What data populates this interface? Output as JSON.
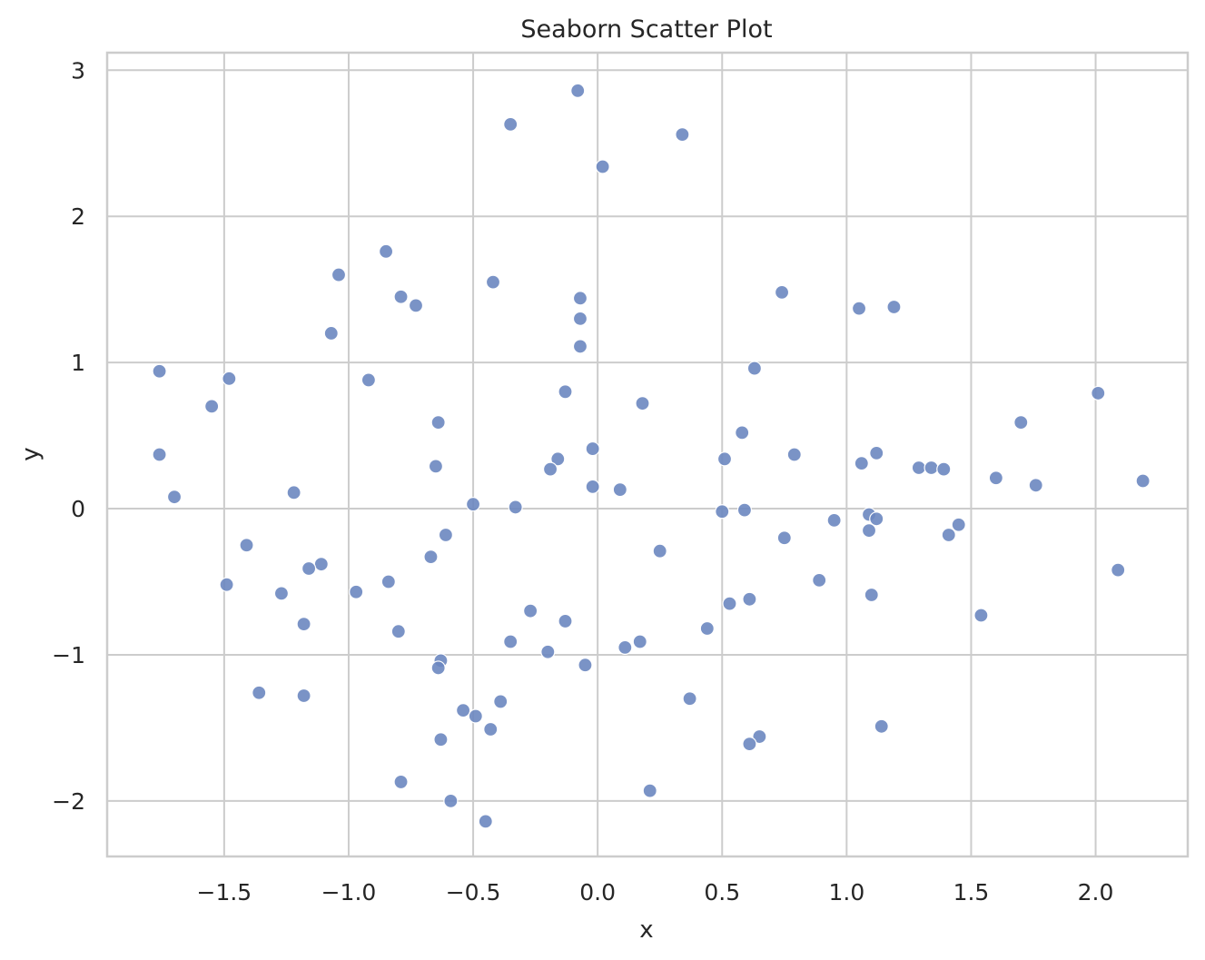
{
  "chart_data": {
    "type": "scatter",
    "title": "Seaborn Scatter Plot",
    "xlabel": "x",
    "ylabel": "y",
    "xlim": [
      -1.97,
      2.37
    ],
    "ylim": [
      -2.38,
      3.12
    ],
    "xticks": [
      -1.5,
      -1.0,
      -0.5,
      0.0,
      0.5,
      1.0,
      1.5,
      2.0
    ],
    "xtick_labels": [
      "−1.5",
      "−1.0",
      "−0.5",
      "0.0",
      "0.5",
      "1.0",
      "1.5",
      "2.0"
    ],
    "yticks": [
      -2,
      -1,
      0,
      1,
      2,
      3
    ],
    "ytick_labels": [
      "−2",
      "−1",
      "0",
      "1",
      "2",
      "3"
    ],
    "grid": true,
    "marker_color": "#6C87C0",
    "points": [
      {
        "x": -0.08,
        "y": 2.86
      },
      {
        "x": -0.35,
        "y": 2.63
      },
      {
        "x": 0.34,
        "y": 2.56
      },
      {
        "x": 0.02,
        "y": 2.34
      },
      {
        "x": -0.85,
        "y": 1.76
      },
      {
        "x": -1.04,
        "y": 1.6
      },
      {
        "x": -0.42,
        "y": 1.55
      },
      {
        "x": 0.74,
        "y": 1.48
      },
      {
        "x": -0.79,
        "y": 1.45
      },
      {
        "x": -0.07,
        "y": 1.44
      },
      {
        "x": -0.73,
        "y": 1.39
      },
      {
        "x": 1.19,
        "y": 1.38
      },
      {
        "x": 1.05,
        "y": 1.37
      },
      {
        "x": -0.07,
        "y": 1.3
      },
      {
        "x": -1.07,
        "y": 1.2
      },
      {
        "x": -0.07,
        "y": 1.11
      },
      {
        "x": 0.63,
        "y": 0.96
      },
      {
        "x": -1.76,
        "y": 0.94
      },
      {
        "x": -1.48,
        "y": 0.89
      },
      {
        "x": -0.92,
        "y": 0.88
      },
      {
        "x": 2.01,
        "y": 0.79
      },
      {
        "x": -0.13,
        "y": 0.8
      },
      {
        "x": 0.18,
        "y": 0.72
      },
      {
        "x": -1.55,
        "y": 0.7
      },
      {
        "x": -0.64,
        "y": 0.59
      },
      {
        "x": 1.7,
        "y": 0.59
      },
      {
        "x": 0.58,
        "y": 0.52
      },
      {
        "x": -0.02,
        "y": 0.41
      },
      {
        "x": 1.12,
        "y": 0.38
      },
      {
        "x": -1.76,
        "y": 0.37
      },
      {
        "x": 0.79,
        "y": 0.37
      },
      {
        "x": -0.16,
        "y": 0.34
      },
      {
        "x": 0.51,
        "y": 0.34
      },
      {
        "x": 1.06,
        "y": 0.31
      },
      {
        "x": -0.65,
        "y": 0.29
      },
      {
        "x": 1.29,
        "y": 0.28
      },
      {
        "x": 1.34,
        "y": 0.28
      },
      {
        "x": 1.39,
        "y": 0.27
      },
      {
        "x": -0.19,
        "y": 0.27
      },
      {
        "x": 1.6,
        "y": 0.21
      },
      {
        "x": 2.19,
        "y": 0.19
      },
      {
        "x": 1.76,
        "y": 0.16
      },
      {
        "x": -0.02,
        "y": 0.15
      },
      {
        "x": 0.09,
        "y": 0.13
      },
      {
        "x": -1.22,
        "y": 0.11
      },
      {
        "x": -1.7,
        "y": 0.08
      },
      {
        "x": -0.5,
        "y": 0.03
      },
      {
        "x": -0.33,
        "y": 0.01
      },
      {
        "x": 0.59,
        "y": -0.01
      },
      {
        "x": 0.5,
        "y": -0.02
      },
      {
        "x": 1.09,
        "y": -0.04
      },
      {
        "x": 1.12,
        "y": -0.07
      },
      {
        "x": 0.95,
        "y": -0.08
      },
      {
        "x": 1.45,
        "y": -0.11
      },
      {
        "x": 1.09,
        "y": -0.15
      },
      {
        "x": -0.61,
        "y": -0.18
      },
      {
        "x": 1.41,
        "y": -0.18
      },
      {
        "x": 0.75,
        "y": -0.2
      },
      {
        "x": -1.41,
        "y": -0.25
      },
      {
        "x": 0.25,
        "y": -0.29
      },
      {
        "x": -0.67,
        "y": -0.33
      },
      {
        "x": -1.11,
        "y": -0.38
      },
      {
        "x": -1.16,
        "y": -0.41
      },
      {
        "x": 2.09,
        "y": -0.42
      },
      {
        "x": 0.89,
        "y": -0.49
      },
      {
        "x": -0.84,
        "y": -0.5
      },
      {
        "x": -1.49,
        "y": -0.52
      },
      {
        "x": -0.97,
        "y": -0.57
      },
      {
        "x": -1.27,
        "y": -0.58
      },
      {
        "x": 1.1,
        "y": -0.59
      },
      {
        "x": 0.61,
        "y": -0.62
      },
      {
        "x": 0.53,
        "y": -0.65
      },
      {
        "x": -0.27,
        "y": -0.7
      },
      {
        "x": 1.54,
        "y": -0.73
      },
      {
        "x": -0.13,
        "y": -0.77
      },
      {
        "x": -1.18,
        "y": -0.79
      },
      {
        "x": 0.44,
        "y": -0.82
      },
      {
        "x": -0.8,
        "y": -0.84
      },
      {
        "x": -0.35,
        "y": -0.91
      },
      {
        "x": 0.17,
        "y": -0.91
      },
      {
        "x": 0.11,
        "y": -0.95
      },
      {
        "x": -0.2,
        "y": -0.98
      },
      {
        "x": -0.63,
        "y": -1.04
      },
      {
        "x": -0.05,
        "y": -1.07
      },
      {
        "x": -0.64,
        "y": -1.09
      },
      {
        "x": -1.36,
        "y": -1.26
      },
      {
        "x": -1.18,
        "y": -1.28
      },
      {
        "x": 0.37,
        "y": -1.3
      },
      {
        "x": -0.39,
        "y": -1.32
      },
      {
        "x": -0.54,
        "y": -1.38
      },
      {
        "x": -0.49,
        "y": -1.42
      },
      {
        "x": 1.14,
        "y": -1.49
      },
      {
        "x": -0.43,
        "y": -1.51
      },
      {
        "x": 0.65,
        "y": -1.56
      },
      {
        "x": -0.63,
        "y": -1.58
      },
      {
        "x": 0.61,
        "y": -1.61
      },
      {
        "x": -0.79,
        "y": -1.87
      },
      {
        "x": 0.21,
        "y": -1.93
      },
      {
        "x": -0.59,
        "y": -2.0
      },
      {
        "x": -0.45,
        "y": -2.14
      }
    ]
  }
}
